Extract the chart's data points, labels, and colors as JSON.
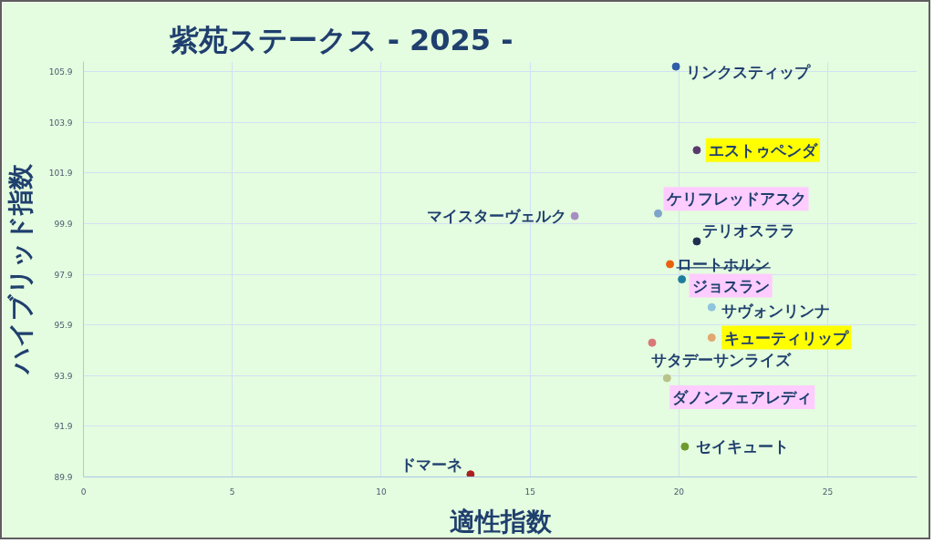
{
  "chart_data": {
    "type": "scatter",
    "title": "紫苑ステークス - 2025 -",
    "xlabel": "適性指数",
    "ylabel": "ハイブリッド指数",
    "xlim": [
      0,
      28
    ],
    "ylim": [
      89.9,
      106.3
    ],
    "xticks": [
      0,
      5,
      10,
      15,
      20,
      25
    ],
    "yticks": [
      89.9,
      91.9,
      93.9,
      95.9,
      97.9,
      99.9,
      101.9,
      103.9,
      105.9
    ],
    "grid": true,
    "marker": "circle",
    "series": [
      {
        "name": "リンクスティップ",
        "color": "#2f5da6",
        "x": [
          19.9
        ],
        "values": [
          106.1
        ]
      },
      {
        "name": "エストゥペンダ",
        "color": "#5a3a6e",
        "x": [
          20.6
        ],
        "values": [
          102.8
        ]
      },
      {
        "name": "ケリフレッドアスク",
        "color": "#7fa4c9",
        "x": [
          19.3
        ],
        "values": [
          100.3
        ]
      },
      {
        "name": "マイスターヴェルク",
        "color": "#a88fc2",
        "x": [
          16.5
        ],
        "values": [
          100.2
        ]
      },
      {
        "name": "テリオスララ",
        "color": "#1f2f4f",
        "x": [
          20.6
        ],
        "values": [
          99.2
        ]
      },
      {
        "name": "ロートホルン",
        "color": "#e8620c",
        "x": [
          19.7
        ],
        "values": [
          98.3
        ]
      },
      {
        "name": "ジョスラン",
        "color": "#1f7d9e",
        "x": [
          20.1
        ],
        "values": [
          97.7
        ]
      },
      {
        "name": "サヴォンリンナ",
        "color": "#8fc4de",
        "x": [
          21.1
        ],
        "values": [
          96.6
        ]
      },
      {
        "name": "キューティリップ",
        "color": "#e2a870",
        "x": [
          21.1
        ],
        "values": [
          95.4
        ]
      },
      {
        "name": "サタデーサンライズ",
        "color": "#d97878",
        "x": [
          19.1
        ],
        "values": [
          95.2
        ]
      },
      {
        "name": "ダノンフェアレディ",
        "color": "#b9c48a",
        "x": [
          19.6
        ],
        "values": [
          93.8
        ]
      },
      {
        "name": "セイキュート",
        "color": "#6e9a2e",
        "x": [
          20.2
        ],
        "values": [
          91.1
        ]
      },
      {
        "name": "ドマーネ",
        "color": "#a82222",
        "x": [
          13.0
        ],
        "values": [
          90.0
        ]
      }
    ]
  }
}
